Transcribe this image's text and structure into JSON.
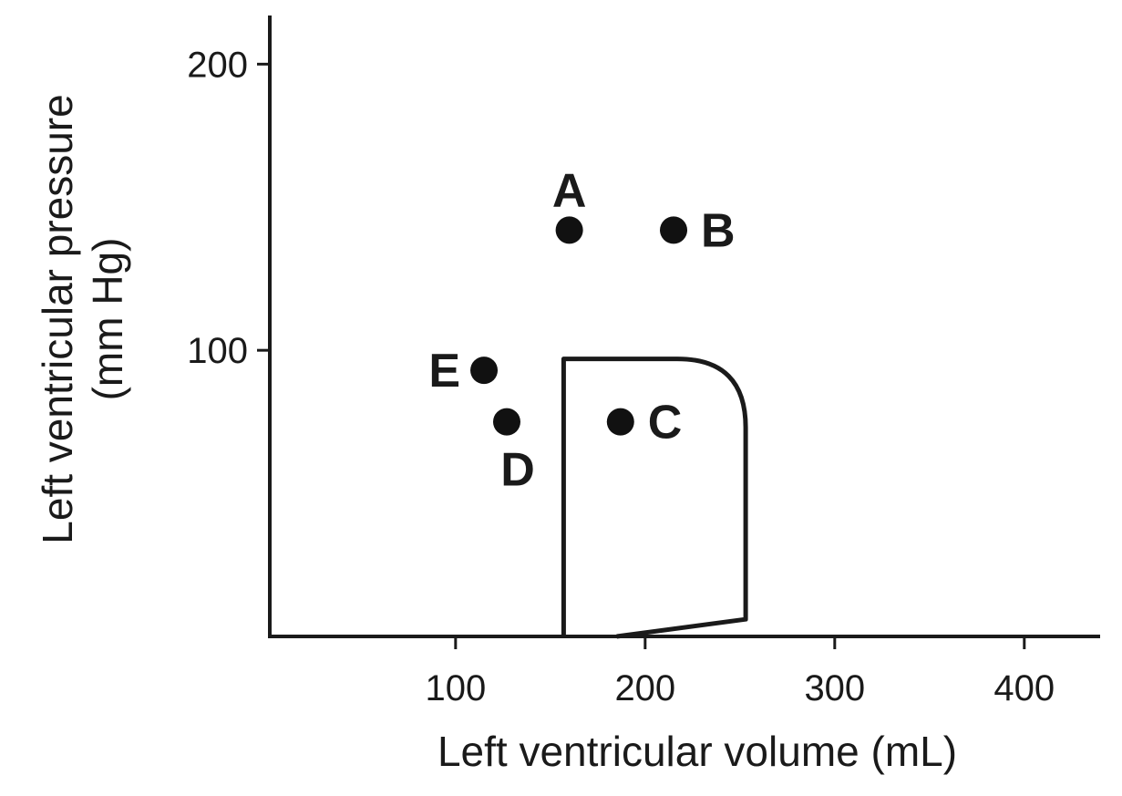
{
  "chart_data": {
    "type": "scatter",
    "xlabel": "Left ventricular volume (mL)",
    "ylabel_line1": "Left ventricular pressure",
    "ylabel_line2": "(mm Hg)",
    "xlim": [
      2,
      440
    ],
    "ylim": [
      0,
      217
    ],
    "x_ticks": [
      {
        "value": 100,
        "label": "100"
      },
      {
        "value": 200,
        "label": "200"
      },
      {
        "value": 300,
        "label": "300"
      },
      {
        "value": 400,
        "label": "400"
      }
    ],
    "y_ticks": [
      {
        "value": 100,
        "label": "100"
      },
      {
        "value": 200,
        "label": "200"
      }
    ],
    "points": [
      {
        "label": "A",
        "x": 160,
        "y": 142,
        "label_pos": "above"
      },
      {
        "label": "B",
        "x": 215,
        "y": 142,
        "label_pos": "right"
      },
      {
        "label": "C",
        "x": 187,
        "y": 75,
        "label_pos": "right"
      },
      {
        "label": "D",
        "x": 127,
        "y": 75,
        "label_pos": "below"
      },
      {
        "label": "E",
        "x": 115,
        "y": 93,
        "label_pos": "left"
      }
    ],
    "loop": [
      [
        157,
        0
      ],
      [
        157,
        97
      ],
      [
        217,
        97
      ],
      {
        "curve_to": [
          253,
          73
        ],
        "via": [
          253,
          97
        ]
      },
      [
        253,
        6
      ],
      [
        185,
        0
      ]
    ],
    "grid": false,
    "legend": "none"
  }
}
